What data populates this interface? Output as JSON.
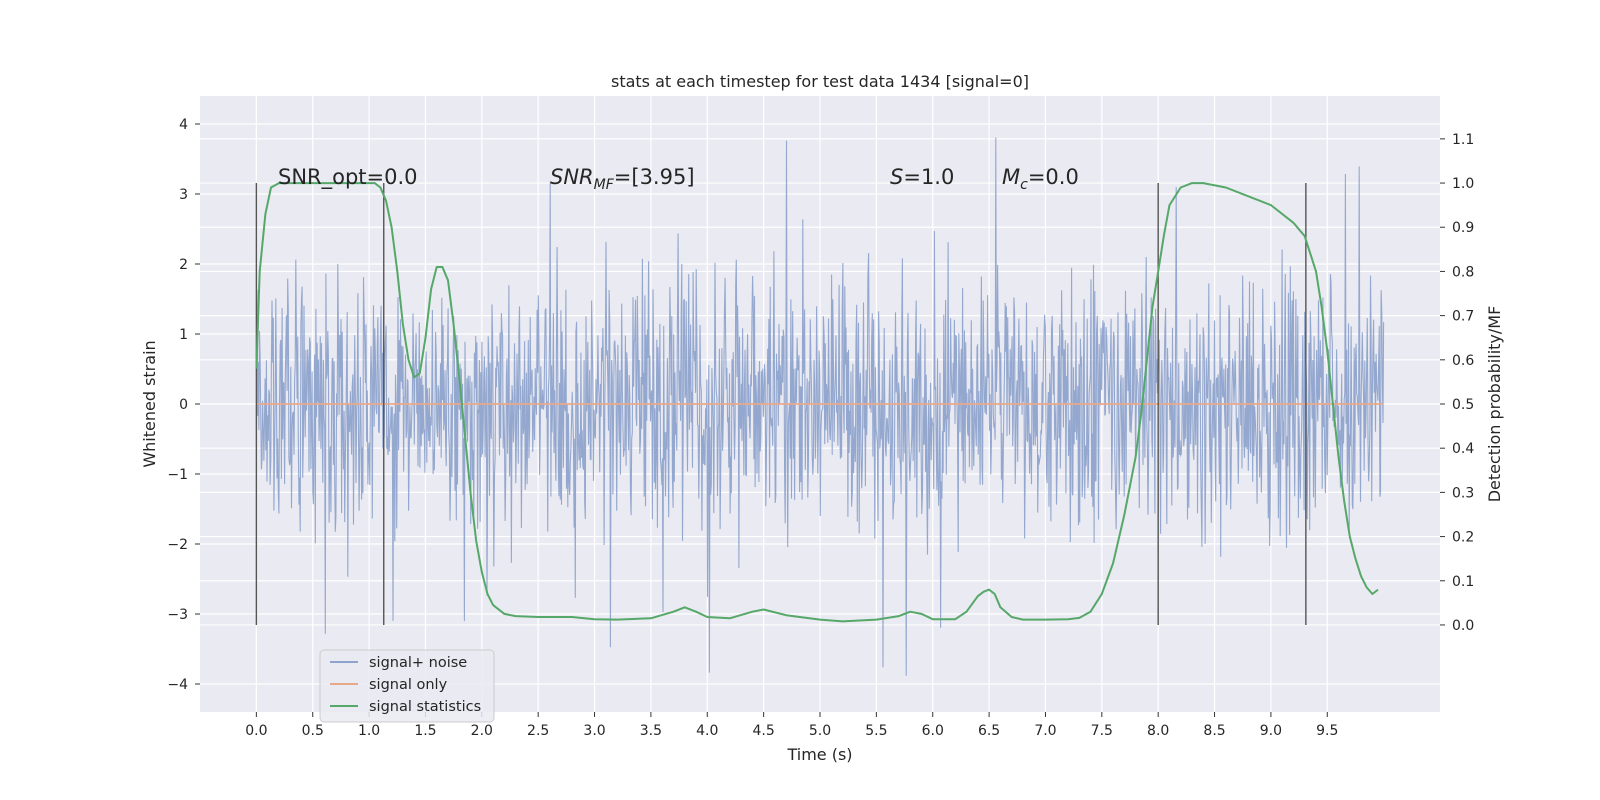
{
  "chart_data": {
    "type": "line",
    "title": "stats at each timestep for test data 1434 [signal=0]",
    "xlabel": "Time (s)",
    "ylabel": "Whitened strain",
    "ylabel_right": "Detection probability/MF",
    "xlim": [
      -0.5,
      10.5
    ],
    "ylim": [
      -4.4,
      4.4
    ],
    "ylim_right": [
      -0.197,
      1.197
    ],
    "x_ticks": [
      "0.0",
      "0.5",
      "1.0",
      "1.5",
      "2.0",
      "2.5",
      "3.0",
      "3.5",
      "4.0",
      "4.5",
      "5.0",
      "5.5",
      "6.0",
      "6.5",
      "7.0",
      "7.5",
      "8.0",
      "8.5",
      "9.0",
      "9.5"
    ],
    "y_ticks": [
      "4",
      "3",
      "2",
      "1",
      "0",
      "−1",
      "−2",
      "−3",
      "−4"
    ],
    "y_ticks_right": [
      "1.1",
      "1.0",
      "0.9",
      "0.8",
      "0.7",
      "0.6",
      "0.5",
      "0.4",
      "0.3",
      "0.2",
      "0.1",
      "0.0"
    ],
    "grid": true,
    "legend_position": "lower-left",
    "annotations": {
      "snr_opt": "SNR_opt=0.0",
      "snr_mf_base": "SNR",
      "snr_mf_sub": "MF",
      "snr_mf_rest": "=[3.95]",
      "s_label": "S",
      "s_rest": "=1.0",
      "mc_base": "M",
      "mc_sub": "c",
      "mc_rest": "=0.0"
    },
    "vertical_markers": [
      0.0,
      1.13,
      8.0,
      9.31
    ],
    "series": [
      {
        "name": "signal+ noise",
        "color": "#8fa4cc",
        "x_range": [
          0.0,
          10.0
        ],
        "amplitude_envelope": {
          "typical": 1.8,
          "extreme": 4.0
        },
        "description_values": {
          "max": 3.95,
          "min": -4.0
        }
      },
      {
        "name": "signal only",
        "color": "#e8a98a",
        "x": [
          0.0,
          10.0
        ],
        "y": [
          0.0,
          0.0
        ]
      },
      {
        "name": "signal statistics",
        "color": "#55a868",
        "axis": "right",
        "x": [
          0.0,
          0.03,
          0.08,
          0.13,
          0.2,
          0.3,
          0.4,
          0.5,
          0.6,
          0.7,
          0.8,
          0.9,
          1.0,
          1.05,
          1.1,
          1.15,
          1.2,
          1.25,
          1.3,
          1.35,
          1.4,
          1.45,
          1.5,
          1.55,
          1.6,
          1.65,
          1.7,
          1.75,
          1.8,
          1.85,
          1.9,
          1.95,
          2.0,
          2.05,
          2.1,
          2.2,
          2.3,
          2.5,
          2.8,
          3.0,
          3.2,
          3.5,
          3.7,
          3.8,
          3.9,
          4.0,
          4.2,
          4.4,
          4.5,
          4.7,
          5.0,
          5.2,
          5.5,
          5.7,
          5.8,
          5.9,
          6.0,
          6.2,
          6.3,
          6.4,
          6.45,
          6.5,
          6.55,
          6.6,
          6.7,
          6.8,
          7.0,
          7.2,
          7.3,
          7.4,
          7.5,
          7.6,
          7.7,
          7.8,
          7.85,
          7.9,
          7.95,
          8.0,
          8.05,
          8.1,
          8.2,
          8.3,
          8.4,
          8.6,
          8.8,
          9.0,
          9.2,
          9.3,
          9.4,
          9.45,
          9.5,
          9.55,
          9.6,
          9.65,
          9.7,
          9.75,
          9.8,
          9.85,
          9.9,
          9.95
        ],
        "y": [
          0.58,
          0.8,
          0.93,
          0.99,
          1.0,
          1.0,
          1.0,
          1.0,
          1.0,
          1.0,
          1.0,
          1.0,
          1.0,
          1.0,
          0.99,
          0.96,
          0.9,
          0.8,
          0.68,
          0.6,
          0.56,
          0.57,
          0.65,
          0.76,
          0.81,
          0.81,
          0.78,
          0.68,
          0.56,
          0.43,
          0.3,
          0.19,
          0.12,
          0.07,
          0.045,
          0.025,
          0.02,
          0.018,
          0.018,
          0.013,
          0.012,
          0.015,
          0.03,
          0.04,
          0.03,
          0.018,
          0.015,
          0.03,
          0.035,
          0.022,
          0.012,
          0.008,
          0.012,
          0.02,
          0.03,
          0.025,
          0.013,
          0.013,
          0.03,
          0.065,
          0.075,
          0.08,
          0.07,
          0.04,
          0.018,
          0.012,
          0.012,
          0.013,
          0.016,
          0.03,
          0.07,
          0.14,
          0.25,
          0.38,
          0.48,
          0.6,
          0.72,
          0.8,
          0.88,
          0.95,
          0.99,
          1.0,
          1.0,
          0.99,
          0.97,
          0.95,
          0.91,
          0.88,
          0.8,
          0.72,
          0.62,
          0.5,
          0.38,
          0.28,
          0.2,
          0.15,
          0.11,
          0.085,
          0.07,
          0.08
        ]
      }
    ]
  }
}
